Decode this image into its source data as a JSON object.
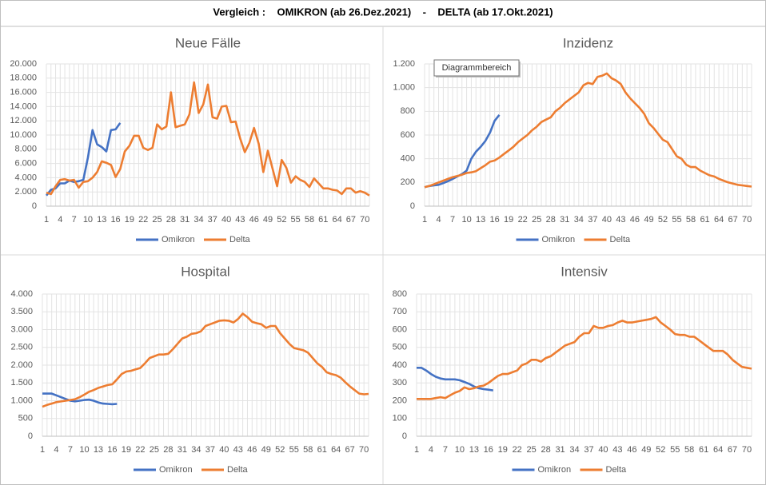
{
  "title": "Vergleich :    OMIKRON (ab 26.Dez.2021)    -    DELTA (ab 17.Okt.2021)",
  "tooltip": "Diagrammbereich",
  "chart_data": [
    {
      "type": "line",
      "title": "Neue Fälle",
      "x": [
        1,
        2,
        3,
        4,
        5,
        6,
        7,
        8,
        9,
        10,
        11,
        12,
        13,
        14,
        15,
        16,
        17,
        18,
        19,
        20,
        21,
        22,
        23,
        24,
        25,
        26,
        27,
        28,
        29,
        30,
        31,
        32,
        33,
        34,
        35,
        36,
        37,
        38,
        39,
        40,
        41,
        42,
        43,
        44,
        45,
        46,
        47,
        48,
        49,
        50,
        51,
        52,
        53,
        54,
        55,
        56,
        57,
        58,
        59,
        60,
        61,
        62,
        63,
        64,
        65,
        66,
        67,
        68,
        69,
        70,
        71
      ],
      "xlim": [
        1,
        71
      ],
      "xticks": [
        1,
        4,
        7,
        10,
        13,
        16,
        19,
        22,
        25,
        28,
        31,
        34,
        37,
        40,
        43,
        46,
        49,
        52,
        55,
        58,
        61,
        64,
        67,
        70
      ],
      "ylim": [
        0,
        20000
      ],
      "yticks": [
        0,
        {
          "value": 2000,
          "label": "2.000"
        },
        {
          "value": 4000,
          "label": "4.000"
        },
        {
          "value": 6000,
          "label": "6.000"
        },
        {
          "value": 8000,
          "label": "8.000"
        },
        {
          "value": 10000,
          "label": "10.000"
        },
        {
          "value": 12000,
          "label": "12.000"
        },
        {
          "value": 14000,
          "label": "14.000"
        },
        {
          "value": 16000,
          "label": "16.000"
        },
        {
          "value": 18000,
          "label": "18.000"
        },
        {
          "value": 20000,
          "label": "20.000"
        }
      ],
      "grid": true,
      "series": [
        {
          "name": "Omikron",
          "color": "#4472c4",
          "values": [
            1500,
            2300,
            2500,
            3200,
            3200,
            3600,
            3400,
            3500,
            3700,
            6800,
            10700,
            8700,
            8300,
            7700,
            10700,
            10800,
            11700,
            null,
            null,
            null,
            null,
            null,
            null,
            null,
            null,
            null,
            null,
            null,
            null,
            null,
            null,
            null,
            null,
            null,
            null,
            null,
            null,
            null,
            null,
            null,
            null,
            null,
            null,
            null,
            null,
            null,
            null,
            null,
            null,
            null,
            null,
            null,
            null,
            null,
            null,
            null,
            null,
            null,
            null,
            null,
            null,
            null,
            null,
            null,
            null,
            null,
            null,
            null,
            null,
            null,
            null
          ]
        },
        {
          "name": "Delta",
          "color": "#ed7d31",
          "values": [
            1900,
            1700,
            2800,
            3700,
            3800,
            3600,
            3700,
            2600,
            3400,
            3500,
            4000,
            4800,
            6300,
            6100,
            5800,
            4100,
            5200,
            7700,
            8500,
            9900,
            9900,
            8200,
            7900,
            8200,
            11500,
            10800,
            11200,
            16000,
            11100,
            11300,
            11500,
            12900,
            17400,
            13100,
            14300,
            17100,
            12500,
            12300,
            14000,
            14100,
            11800,
            11900,
            9500,
            7600,
            8900,
            11000,
            8800,
            4800,
            7800,
            5300,
            2800,
            6500,
            5400,
            3300,
            4200,
            3700,
            3400,
            2700,
            3900,
            3200,
            2500,
            2500,
            2300,
            2200,
            1700,
            2500,
            2500,
            1900,
            2100,
            1900,
            1500
          ]
        }
      ]
    },
    {
      "type": "line",
      "title": "Inzidenz",
      "x": [
        1,
        2,
        3,
        4,
        5,
        6,
        7,
        8,
        9,
        10,
        11,
        12,
        13,
        14,
        15,
        16,
        17,
        18,
        19,
        20,
        21,
        22,
        23,
        24,
        25,
        26,
        27,
        28,
        29,
        30,
        31,
        32,
        33,
        34,
        35,
        36,
        37,
        38,
        39,
        40,
        41,
        42,
        43,
        44,
        45,
        46,
        47,
        48,
        49,
        50,
        51,
        52,
        53,
        54,
        55,
        56,
        57,
        58,
        59,
        60,
        61,
        62,
        63,
        64,
        65,
        66,
        67,
        68,
        69,
        70,
        71
      ],
      "xlim": [
        1,
        71
      ],
      "xticks": [
        1,
        4,
        7,
        10,
        13,
        16,
        19,
        22,
        25,
        28,
        31,
        34,
        37,
        40,
        43,
        46,
        49,
        52,
        55,
        58,
        61,
        64,
        67,
        70
      ],
      "ylim": [
        0,
        1200
      ],
      "yticks": [
        0,
        200,
        400,
        600,
        800,
        {
          "value": 1000,
          "label": "1.000"
        },
        {
          "value": 1200,
          "label": "1.200"
        }
      ],
      "grid": true,
      "series": [
        {
          "name": "Omikron",
          "color": "#4472c4",
          "values": [
            160,
            170,
            175,
            180,
            195,
            210,
            230,
            250,
            270,
            300,
            400,
            460,
            500,
            550,
            620,
            720,
            770,
            null,
            null,
            null,
            null,
            null,
            null,
            null,
            null,
            null,
            null,
            null,
            null,
            null,
            null,
            null,
            null,
            null,
            null,
            null,
            null,
            null,
            null,
            null,
            null,
            null,
            null,
            null,
            null,
            null,
            null,
            null,
            null,
            null,
            null,
            null,
            null,
            null,
            null,
            null,
            null,
            null,
            null,
            null,
            null,
            null,
            null,
            null,
            null,
            null,
            null,
            null,
            null,
            null,
            null
          ]
        },
        {
          "name": "Delta",
          "color": "#ed7d31",
          "values": [
            160,
            170,
            185,
            200,
            215,
            230,
            245,
            255,
            265,
            280,
            285,
            295,
            320,
            345,
            375,
            385,
            410,
            440,
            470,
            500,
            540,
            570,
            600,
            640,
            670,
            710,
            730,
            750,
            800,
            830,
            870,
            900,
            930,
            960,
            1020,
            1040,
            1030,
            1090,
            1100,
            1120,
            1080,
            1060,
            1030,
            960,
            910,
            870,
            830,
            780,
            700,
            660,
            610,
            560,
            540,
            480,
            420,
            400,
            350,
            330,
            330,
            300,
            280,
            260,
            250,
            230,
            215,
            200,
            190,
            180,
            175,
            170,
            165
          ]
        }
      ]
    },
    {
      "type": "line",
      "title": "Hospital",
      "x": [
        1,
        2,
        3,
        4,
        5,
        6,
        7,
        8,
        9,
        10,
        11,
        12,
        13,
        14,
        15,
        16,
        17,
        18,
        19,
        20,
        21,
        22,
        23,
        24,
        25,
        26,
        27,
        28,
        29,
        30,
        31,
        32,
        33,
        34,
        35,
        36,
        37,
        38,
        39,
        40,
        41,
        42,
        43,
        44,
        45,
        46,
        47,
        48,
        49,
        50,
        51,
        52,
        53,
        54,
        55,
        56,
        57,
        58,
        59,
        60,
        61,
        62,
        63,
        64,
        65,
        66,
        67,
        68,
        69,
        70,
        71
      ],
      "xlim": [
        1,
        71
      ],
      "xticks": [
        1,
        4,
        7,
        10,
        13,
        16,
        19,
        22,
        25,
        28,
        31,
        34,
        37,
        40,
        43,
        46,
        49,
        52,
        55,
        58,
        61,
        64,
        67,
        70
      ],
      "ylim": [
        0,
        4000
      ],
      "yticks": [
        0,
        500,
        {
          "value": 1000,
          "label": "1.000"
        },
        {
          "value": 1500,
          "label": "1.500"
        },
        {
          "value": 2000,
          "label": "2.000"
        },
        {
          "value": 2500,
          "label": "2.500"
        },
        {
          "value": 3000,
          "label": "3.000"
        },
        {
          "value": 3500,
          "label": "3.500"
        },
        {
          "value": 4000,
          "label": "4.000"
        }
      ],
      "grid": true,
      "series": [
        {
          "name": "Omikron",
          "color": "#4472c4",
          "values": [
            1200,
            1200,
            1200,
            1150,
            1100,
            1050,
            1000,
            980,
            1000,
            1020,
            1030,
            1000,
            950,
            920,
            910,
            900,
            910,
            null,
            null,
            null,
            null,
            null,
            null,
            null,
            null,
            null,
            null,
            null,
            null,
            null,
            null,
            null,
            null,
            null,
            null,
            null,
            null,
            null,
            null,
            null,
            null,
            null,
            null,
            null,
            null,
            null,
            null,
            null,
            null,
            null,
            null,
            null,
            null,
            null,
            null,
            null,
            null,
            null,
            null,
            null,
            null,
            null,
            null,
            null,
            null,
            null,
            null,
            null,
            null,
            null,
            null
          ]
        },
        {
          "name": "Delta",
          "color": "#ed7d31",
          "values": [
            830,
            880,
            920,
            960,
            980,
            1000,
            1020,
            1040,
            1100,
            1170,
            1250,
            1300,
            1360,
            1400,
            1440,
            1460,
            1600,
            1750,
            1820,
            1840,
            1880,
            1920,
            2050,
            2200,
            2250,
            2300,
            2300,
            2320,
            2450,
            2600,
            2750,
            2800,
            2880,
            2900,
            2950,
            3100,
            3150,
            3200,
            3250,
            3260,
            3250,
            3200,
            3300,
            3450,
            3350,
            3220,
            3180,
            3150,
            3050,
            3100,
            3100,
            2900,
            2750,
            2600,
            2480,
            2450,
            2420,
            2350,
            2200,
            2050,
            1950,
            1800,
            1750,
            1720,
            1650,
            1520,
            1400,
            1300,
            1200,
            1180,
            1190
          ]
        }
      ]
    },
    {
      "type": "line",
      "title": "Intensiv",
      "x": [
        1,
        2,
        3,
        4,
        5,
        6,
        7,
        8,
        9,
        10,
        11,
        12,
        13,
        14,
        15,
        16,
        17,
        18,
        19,
        20,
        21,
        22,
        23,
        24,
        25,
        26,
        27,
        28,
        29,
        30,
        31,
        32,
        33,
        34,
        35,
        36,
        37,
        38,
        39,
        40,
        41,
        42,
        43,
        44,
        45,
        46,
        47,
        48,
        49,
        50,
        51,
        52,
        53,
        54,
        55,
        56,
        57,
        58,
        59,
        60,
        61,
        62,
        63,
        64,
        65,
        66,
        67,
        68,
        69,
        70,
        71
      ],
      "xlim": [
        1,
        71
      ],
      "xticks": [
        1,
        4,
        7,
        10,
        13,
        16,
        19,
        22,
        25,
        28,
        31,
        34,
        37,
        40,
        43,
        46,
        49,
        52,
        55,
        58,
        61,
        64,
        67,
        70
      ],
      "ylim": [
        0,
        800
      ],
      "yticks": [
        0,
        100,
        200,
        300,
        400,
        500,
        600,
        700,
        800
      ],
      "grid": true,
      "series": [
        {
          "name": "Omikron",
          "color": "#4472c4",
          "values": [
            385,
            385,
            370,
            350,
            335,
            325,
            320,
            320,
            320,
            315,
            305,
            295,
            280,
            270,
            265,
            262,
            258,
            null,
            null,
            null,
            null,
            null,
            null,
            null,
            null,
            null,
            null,
            null,
            null,
            null,
            null,
            null,
            null,
            null,
            null,
            null,
            null,
            null,
            null,
            null,
            null,
            null,
            null,
            null,
            null,
            null,
            null,
            null,
            null,
            null,
            null,
            null,
            null,
            null,
            null,
            null,
            null,
            null,
            null,
            null,
            null,
            null,
            null,
            null,
            null,
            null,
            null,
            null,
            null,
            null,
            null
          ]
        },
        {
          "name": "Delta",
          "color": "#ed7d31",
          "values": [
            210,
            210,
            210,
            210,
            215,
            220,
            215,
            230,
            245,
            255,
            275,
            265,
            270,
            280,
            285,
            300,
            320,
            340,
            350,
            350,
            360,
            370,
            400,
            410,
            430,
            430,
            420,
            440,
            450,
            470,
            490,
            510,
            520,
            530,
            560,
            580,
            580,
            620,
            610,
            610,
            620,
            625,
            640,
            650,
            640,
            640,
            645,
            650,
            655,
            660,
            670,
            640,
            620,
            600,
            575,
            570,
            570,
            560,
            560,
            540,
            520,
            500,
            480,
            480,
            480,
            460,
            430,
            410,
            390,
            385,
            380
          ]
        }
      ]
    }
  ]
}
